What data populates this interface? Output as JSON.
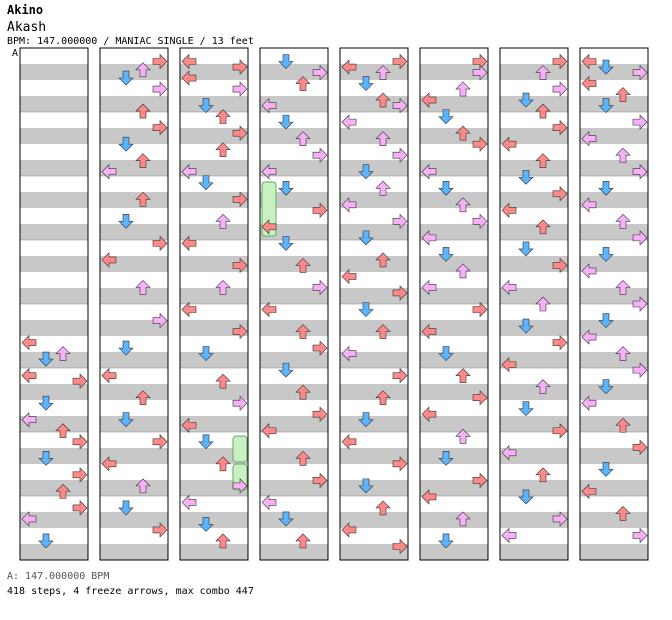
{
  "song": {
    "title": "Akino",
    "artist": "Akash",
    "info": "BPM: 147.000000 / MANIAC SINGLE / 13 feet"
  },
  "marker": "A",
  "footer": {
    "bpm": "A: 147.000000 BPM",
    "stats": "418 steps, 4 freeze arrows, max combo 447"
  },
  "colors": {
    "band": "#c8c8c8",
    "left": "#f88",
    "down": "#5ab4ff",
    "up": "#f88",
    "right": "#f88",
    "pink": "#f8b0f8",
    "freeze": "#c8f0c0"
  },
  "chart_data": {
    "type": "step-chart",
    "columns": 8,
    "freezes": [
      {
        "column": 3,
        "lane": 0
      },
      {
        "column": 2,
        "lane": 3
      },
      {
        "column": 2,
        "lane": 3
      }
    ],
    "arrows": [
      [
        [
          0,
          5.2
        ],
        [
          1,
          5.5
        ],
        [
          2,
          5.4
        ],
        [
          0,
          5.8
        ],
        [
          3,
          5.9
        ],
        [
          1,
          6.3
        ],
        [
          0,
          6.6
        ],
        [
          2,
          6.8
        ],
        [
          3,
          7.0
        ],
        [
          1,
          7.3
        ],
        [
          3,
          7.6
        ],
        [
          2,
          7.9
        ],
        [
          3,
          8.2
        ],
        [
          0,
          8.4
        ],
        [
          1,
          8.8
        ]
      ],
      [
        [
          3,
          0.1
        ],
        [
          2,
          0.25
        ],
        [
          1,
          0.4
        ],
        [
          3,
          0.6
        ],
        [
          2,
          1.0
        ],
        [
          3,
          1.3
        ],
        [
          1,
          1.6
        ],
        [
          2,
          1.9
        ],
        [
          0,
          2.1
        ],
        [
          2,
          2.6
        ],
        [
          1,
          3.0
        ],
        [
          3,
          3.4
        ],
        [
          0,
          3.7
        ],
        [
          2,
          4.2
        ],
        [
          3,
          4.8
        ],
        [
          1,
          5.3
        ],
        [
          0,
          5.8
        ],
        [
          2,
          6.2
        ],
        [
          1,
          6.6
        ],
        [
          3,
          7.0
        ],
        [
          0,
          7.4
        ],
        [
          2,
          7.8
        ],
        [
          1,
          8.2
        ],
        [
          3,
          8.6
        ]
      ],
      [
        [
          0,
          0.1
        ],
        [
          3,
          0.2
        ],
        [
          0,
          0.4
        ],
        [
          3,
          0.6
        ],
        [
          1,
          0.9
        ],
        [
          2,
          1.1
        ],
        [
          3,
          1.4
        ],
        [
          2,
          1.7
        ],
        [
          0,
          2.1
        ],
        [
          1,
          2.3
        ],
        [
          3,
          2.6
        ],
        [
          2,
          3.0
        ],
        [
          0,
          3.4
        ],
        [
          3,
          3.8
        ],
        [
          2,
          4.2
        ],
        [
          0,
          4.6
        ],
        [
          3,
          5.0
        ],
        [
          1,
          5.4
        ],
        [
          2,
          5.9
        ],
        [
          3,
          6.3
        ],
        [
          0,
          6.7
        ],
        [
          1,
          7.0
        ],
        [
          2,
          7.4
        ],
        [
          3,
          7.8
        ],
        [
          0,
          8.1
        ],
        [
          1,
          8.5
        ],
        [
          2,
          8.8
        ]
      ],
      [
        [
          1,
          0.1
        ],
        [
          3,
          0.3
        ],
        [
          2,
          0.5
        ],
        [
          0,
          0.9
        ],
        [
          1,
          1.2
        ],
        [
          2,
          1.5
        ],
        [
          3,
          1.8
        ],
        [
          0,
          2.1
        ],
        [
          1,
          2.4
        ],
        [
          3,
          2.8
        ],
        [
          0,
          3.1
        ],
        [
          1,
          3.4
        ],
        [
          2,
          3.8
        ],
        [
          3,
          4.2
        ],
        [
          0,
          4.6
        ],
        [
          2,
          5.0
        ],
        [
          3,
          5.3
        ],
        [
          1,
          5.7
        ],
        [
          2,
          6.1
        ],
        [
          3,
          6.5
        ],
        [
          0,
          6.8
        ],
        [
          2,
          7.3
        ],
        [
          3,
          7.7
        ],
        [
          0,
          8.1
        ],
        [
          1,
          8.4
        ],
        [
          2,
          8.8
        ]
      ],
      [
        [
          0,
          0.2
        ],
        [
          2,
          0.3
        ],
        [
          3,
          0.1
        ],
        [
          1,
          0.5
        ],
        [
          2,
          0.8
        ],
        [
          3,
          0.9
        ],
        [
          0,
          1.2
        ],
        [
          2,
          1.5
        ],
        [
          3,
          1.8
        ],
        [
          1,
          2.1
        ],
        [
          2,
          2.4
        ],
        [
          0,
          2.7
        ],
        [
          3,
          3.0
        ],
        [
          1,
          3.3
        ],
        [
          2,
          3.7
        ],
        [
          0,
          4.0
        ],
        [
          3,
          4.3
        ],
        [
          1,
          4.6
        ],
        [
          2,
          5.0
        ],
        [
          0,
          5.4
        ],
        [
          3,
          5.8
        ],
        [
          2,
          6.2
        ],
        [
          1,
          6.6
        ],
        [
          0,
          7.0
        ],
        [
          3,
          7.4
        ],
        [
          1,
          7.8
        ],
        [
          2,
          8.2
        ],
        [
          0,
          8.6
        ],
        [
          3,
          8.9
        ]
      ],
      [
        [
          3,
          0.1
        ],
        [
          3,
          0.3
        ],
        [
          2,
          0.6
        ],
        [
          0,
          0.8
        ],
        [
          1,
          1.1
        ],
        [
          2,
          1.4
        ],
        [
          3,
          1.6
        ],
        [
          0,
          2.1
        ],
        [
          1,
          2.4
        ],
        [
          2,
          2.7
        ],
        [
          3,
          3.0
        ],
        [
          0,
          3.3
        ],
        [
          1,
          3.6
        ],
        [
          2,
          3.9
        ],
        [
          0,
          4.2
        ],
        [
          3,
          4.6
        ],
        [
          0,
          5.0
        ],
        [
          1,
          5.4
        ],
        [
          2,
          5.8
        ],
        [
          3,
          6.2
        ],
        [
          0,
          6.5
        ],
        [
          2,
          6.9
        ],
        [
          1,
          7.3
        ],
        [
          3,
          7.7
        ],
        [
          0,
          8.0
        ],
        [
          2,
          8.4
        ],
        [
          1,
          8.8
        ]
      ],
      [
        [
          3,
          0.1
        ],
        [
          2,
          0.3
        ],
        [
          3,
          0.6
        ],
        [
          1,
          0.8
        ],
        [
          2,
          1.0
        ],
        [
          3,
          1.3
        ],
        [
          0,
          1.6
        ],
        [
          2,
          1.9
        ],
        [
          1,
          2.2
        ],
        [
          3,
          2.5
        ],
        [
          0,
          2.8
        ],
        [
          2,
          3.1
        ],
        [
          1,
          3.5
        ],
        [
          3,
          3.8
        ],
        [
          0,
          4.2
        ],
        [
          2,
          4.5
        ],
        [
          1,
          4.9
        ],
        [
          3,
          5.2
        ],
        [
          0,
          5.6
        ],
        [
          2,
          6.0
        ],
        [
          1,
          6.4
        ],
        [
          3,
          6.8
        ],
        [
          0,
          7.2
        ],
        [
          2,
          7.6
        ],
        [
          1,
          8.0
        ],
        [
          3,
          8.4
        ],
        [
          0,
          8.7
        ]
      ],
      [
        [
          0,
          0.1
        ],
        [
          1,
          0.2
        ],
        [
          3,
          0.3
        ],
        [
          0,
          0.5
        ],
        [
          2,
          0.7
        ],
        [
          1,
          0.9
        ],
        [
          3,
          1.2
        ],
        [
          0,
          1.5
        ],
        [
          2,
          1.8
        ],
        [
          3,
          2.1
        ],
        [
          1,
          2.4
        ],
        [
          0,
          2.7
        ],
        [
          2,
          3.0
        ],
        [
          3,
          3.3
        ],
        [
          1,
          3.6
        ],
        [
          0,
          3.9
        ],
        [
          2,
          4.2
        ],
        [
          3,
          4.5
        ],
        [
          1,
          4.8
        ],
        [
          0,
          5.1
        ],
        [
          2,
          5.4
        ],
        [
          3,
          5.7
        ],
        [
          1,
          6.0
        ],
        [
          0,
          6.3
        ],
        [
          2,
          6.7
        ],
        [
          3,
          7.1
        ],
        [
          1,
          7.5
        ],
        [
          0,
          7.9
        ],
        [
          2,
          8.3
        ],
        [
          3,
          8.7
        ]
      ]
    ]
  }
}
